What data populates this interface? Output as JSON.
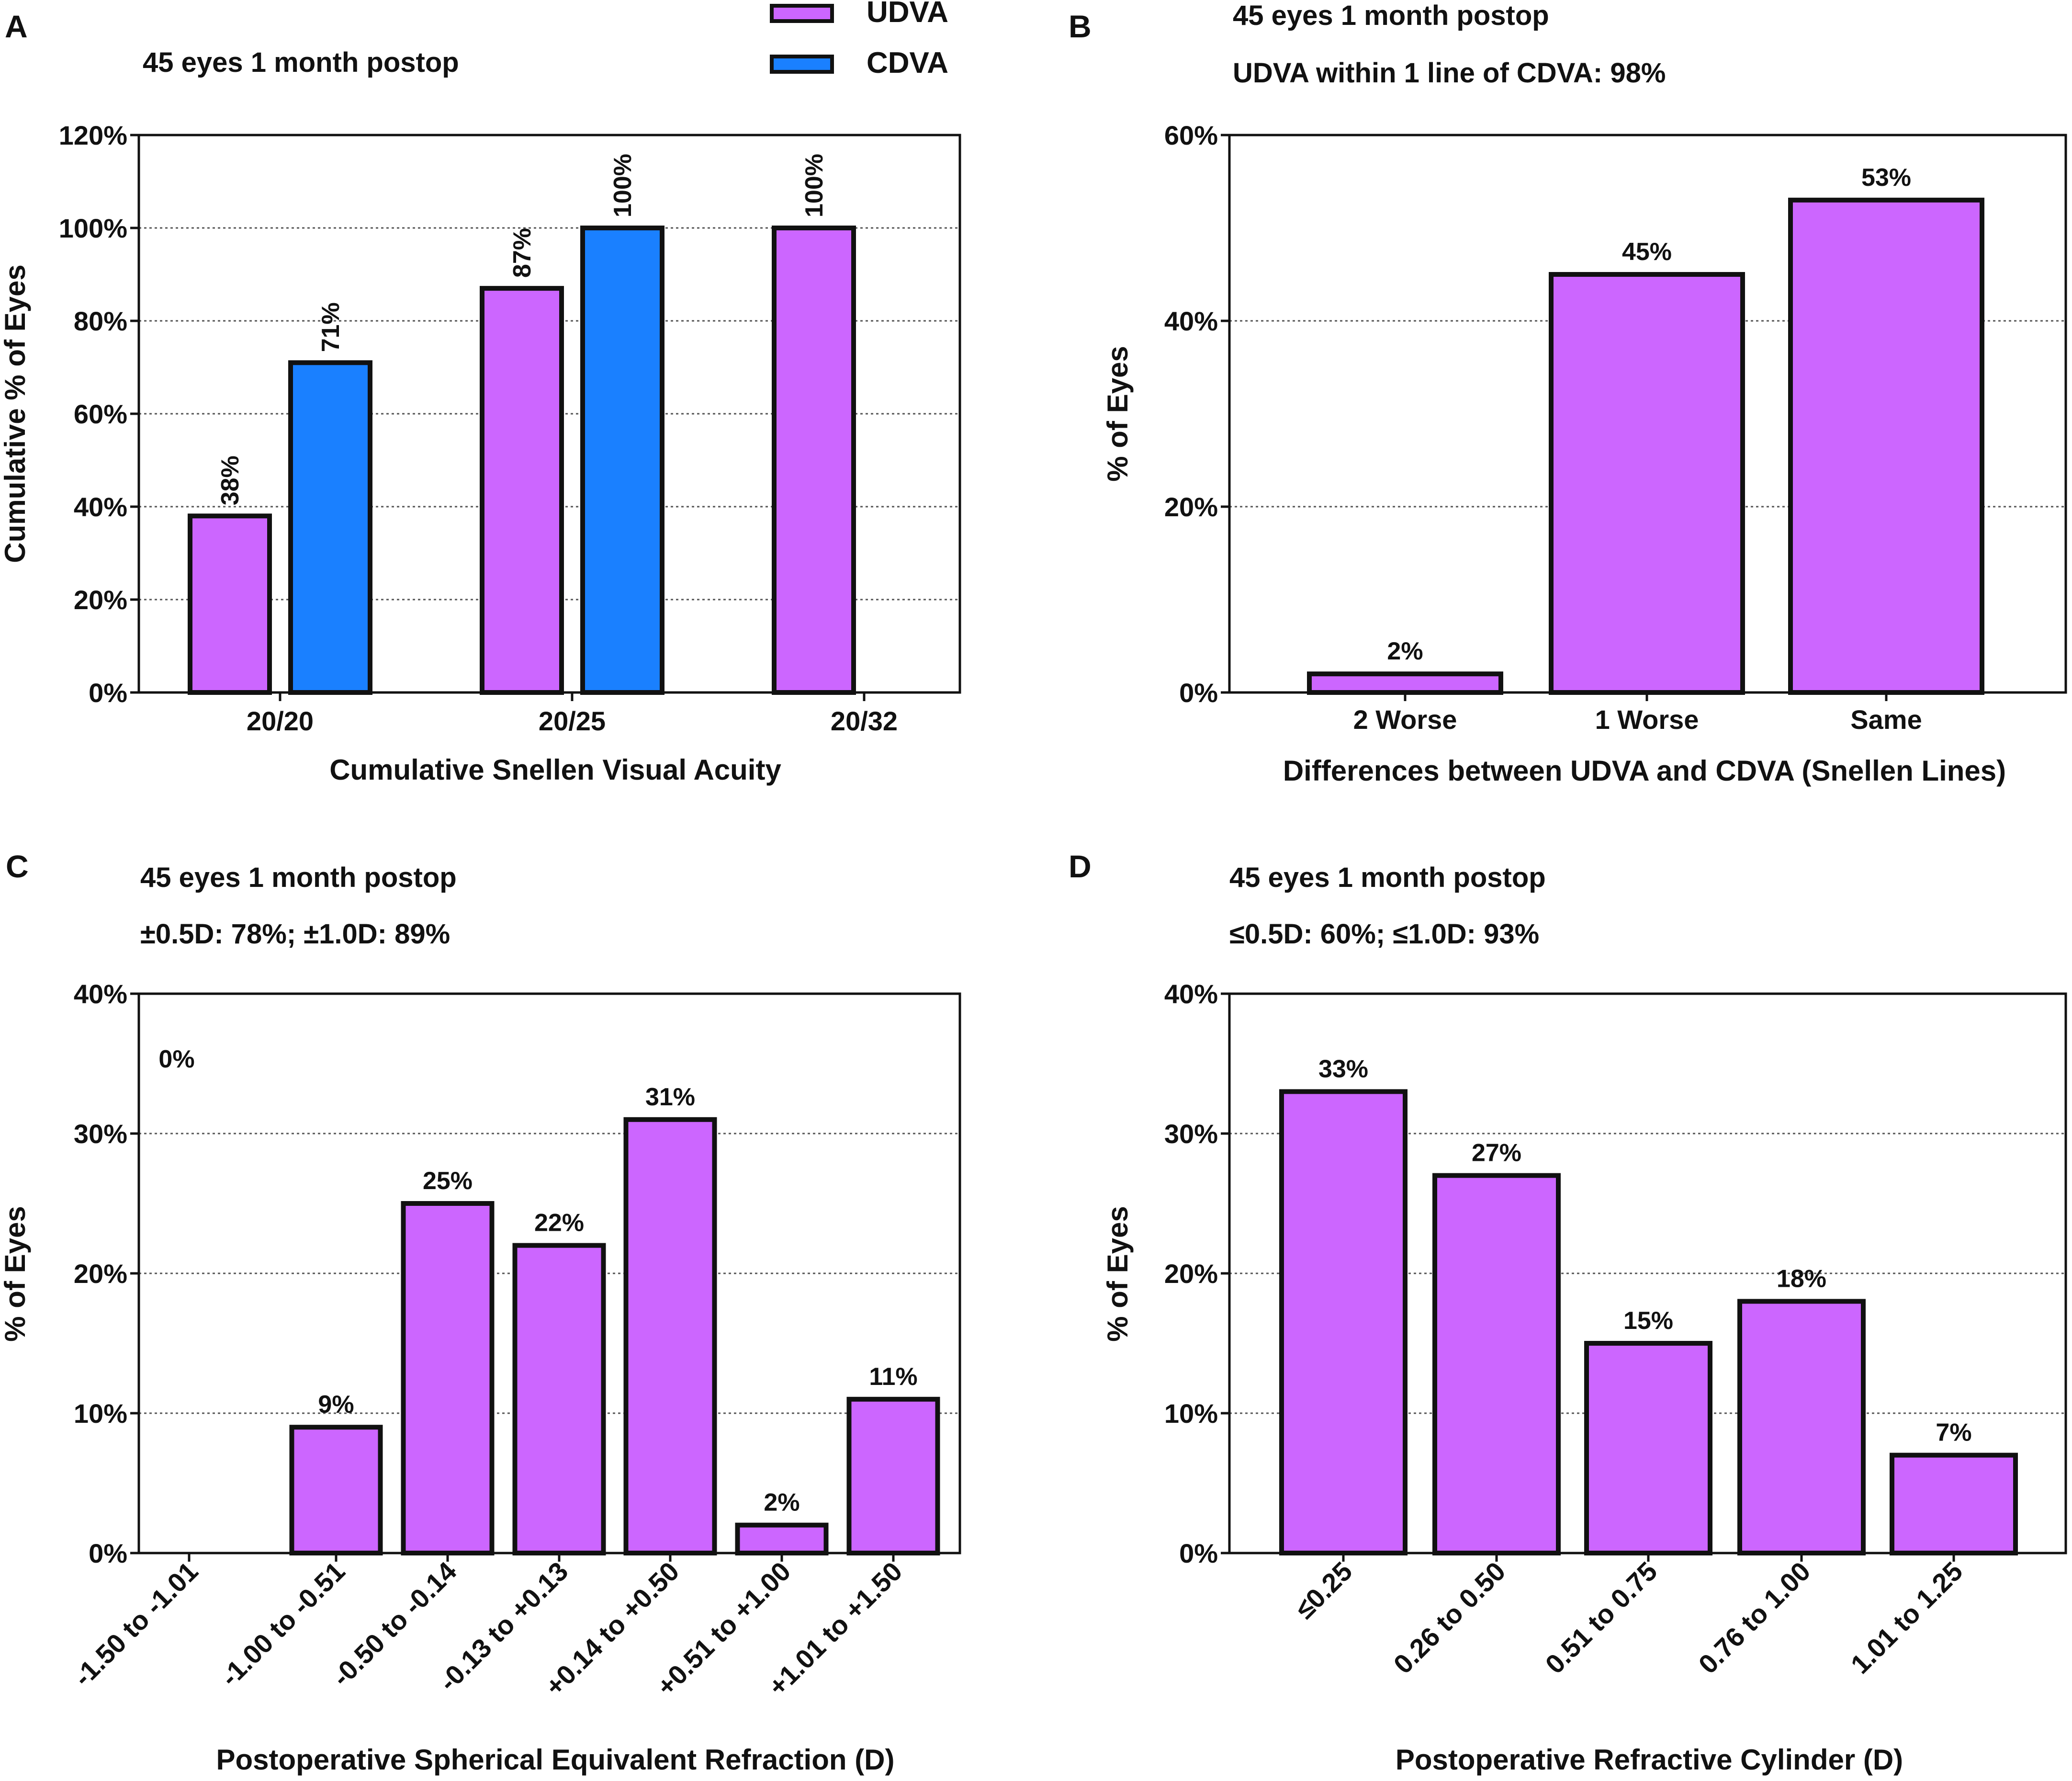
{
  "colors": {
    "udva": "#cc66ff",
    "cdva": "#1a80ff",
    "outline": "#111111",
    "grid": "#555555"
  },
  "legend": {
    "udva_label": "UDVA",
    "cdva_label": "CDVA"
  },
  "chart_data": [
    {
      "panel": "A",
      "type": "bar",
      "subtitles": [
        "45 eyes 1 month postop"
      ],
      "categories": [
        "20/20",
        "20/25",
        "20/32"
      ],
      "series": [
        {
          "name": "UDVA",
          "values": [
            38,
            87,
            100
          ],
          "labels": [
            "38%",
            "87%",
            "100%"
          ]
        },
        {
          "name": "CDVA",
          "values": [
            71,
            100,
            null
          ],
          "labels": [
            "71%",
            "100%",
            ""
          ]
        }
      ],
      "xlabel": "Cumulative Snellen Visual Acuity",
      "ylabel": "Cumulative % of Eyes",
      "ylim": [
        0,
        120
      ],
      "yticks": [
        0,
        20,
        40,
        60,
        80,
        100,
        120
      ],
      "ytick_labels": [
        "0%",
        "20%",
        "40%",
        "60%",
        "80%",
        "100%",
        "120%"
      ],
      "grid": true,
      "label_rotation": "vertical",
      "legend_position": "top"
    },
    {
      "panel": "B",
      "type": "bar",
      "subtitles": [
        "45 eyes 1 month postop",
        "UDVA within 1 line of CDVA: 98%"
      ],
      "categories": [
        "2 Worse",
        "1 Worse",
        "Same"
      ],
      "series": [
        {
          "name": "UDVA",
          "values": [
            2,
            45,
            53
          ],
          "labels": [
            "2%",
            "45%",
            "53%"
          ]
        }
      ],
      "xlabel": "Differences between UDVA and CDVA (Snellen Lines)",
      "ylabel": "% of Eyes",
      "ylim": [
        0,
        60
      ],
      "yticks": [
        0,
        20,
        40,
        60
      ],
      "ytick_labels": [
        "0%",
        "20%",
        "40%",
        "60%"
      ],
      "grid": true
    },
    {
      "panel": "C",
      "type": "bar",
      "subtitles": [
        "45 eyes 1 month postop",
        "±0.5D: 78%; ±1.0D: 89%"
      ],
      "categories": [
        "-1.50 to -1.01",
        "-1.00 to -0.51",
        "-0.50 to -0.14",
        "-0.13 to +0.13",
        "+0.14 to +0.50",
        "+0.51 to +1.00",
        "+1.01 to +1.50"
      ],
      "series": [
        {
          "name": "UDVA",
          "values": [
            0,
            9,
            25,
            22,
            31,
            2,
            11
          ],
          "labels": [
            "0%",
            "9%",
            "25%",
            "22%",
            "31%",
            "2%",
            "11%"
          ]
        }
      ],
      "xlabel": "Postoperative Spherical Equivalent Refraction (D)",
      "ylabel": "% of Eyes",
      "ylim": [
        0,
        40
      ],
      "yticks": [
        0,
        10,
        20,
        30,
        40
      ],
      "ytick_labels": [
        "0%",
        "10%",
        "20%",
        "30%",
        "40%"
      ],
      "grid": true
    },
    {
      "panel": "D",
      "type": "bar",
      "subtitles": [
        "45 eyes 1 month postop",
        "≤0.5D: 60%; ≤1.0D: 93%"
      ],
      "categories": [
        "≤0.25",
        "0.26 to 0.50",
        "0.51 to 0.75",
        "0.76 to 1.00",
        "1.01 to 1.25"
      ],
      "series": [
        {
          "name": "UDVA",
          "values": [
            33,
            27,
            15,
            18,
            7
          ],
          "labels": [
            "33%",
            "27%",
            "15%",
            "18%",
            "7%"
          ]
        }
      ],
      "xlabel": "Postoperative Refractive Cylinder (D)",
      "ylabel": "% of Eyes",
      "ylim": [
        0,
        40
      ],
      "yticks": [
        0,
        10,
        20,
        30,
        40
      ],
      "ytick_labels": [
        "0%",
        "10%",
        "20%",
        "30%",
        "40%"
      ],
      "grid": true
    }
  ]
}
